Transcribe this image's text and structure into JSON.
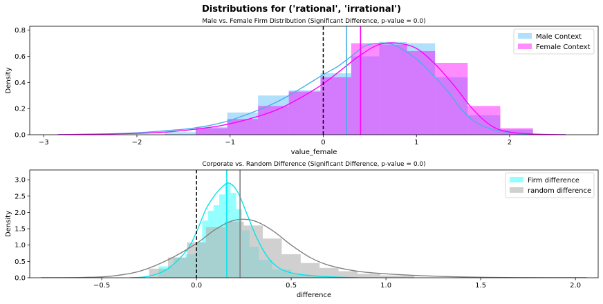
{
  "figure": {
    "suptitle": "Distributions for ('rational', 'irrational')"
  },
  "chart_data": [
    {
      "type": "histogram-kde",
      "title": "Male vs. Female Firm Distribution (Significant Difference, p-value = 0.0)",
      "xlabel": "value_female",
      "ylabel": "Density",
      "xlim": [
        -3.15,
        2.95
      ],
      "ylim": [
        0,
        0.83
      ],
      "xticks": [
        -3,
        -2,
        -1,
        0,
        1,
        2
      ],
      "yticks": [
        0.0,
        0.2,
        0.4,
        0.6,
        0.8
      ],
      "ytick_format": 1,
      "legend_position": "top-right",
      "reference_line_x": 0,
      "series": [
        {
          "name": "Male Context",
          "color": "#4aaee8",
          "fill_color": "#87cefa",
          "fill_opacity": 0.65,
          "bins": [
            {
              "x0": -1.7,
              "x1": -1.37,
              "height": 0.02
            },
            {
              "x0": -1.37,
              "x1": -1.03,
              "height": 0.06
            },
            {
              "x0": -1.03,
              "x1": -0.7,
              "height": 0.17
            },
            {
              "x0": -0.7,
              "x1": -0.37,
              "height": 0.3
            },
            {
              "x0": -0.37,
              "x1": -0.03,
              "height": 0.34
            },
            {
              "x0": -0.03,
              "x1": 0.3,
              "height": 0.47
            },
            {
              "x0": 0.3,
              "x1": 0.6,
              "height": 0.6
            },
            {
              "x0": 0.6,
              "x1": 0.9,
              "height": 0.71
            },
            {
              "x0": 0.9,
              "x1": 1.2,
              "height": 0.7
            },
            {
              "x0": 1.2,
              "x1": 1.55,
              "height": 0.44
            },
            {
              "x0": 1.55,
              "x1": 1.9,
              "height": 0.15
            },
            {
              "x0": 1.9,
              "x1": 2.25,
              "height": 0.04
            }
          ],
          "kde_x": [
            -2.85,
            -2.4,
            -2.0,
            -1.7,
            -1.4,
            -1.1,
            -0.8,
            -0.5,
            -0.25,
            0.0,
            0.15,
            0.3,
            0.45,
            0.6,
            0.75,
            0.9,
            1.05,
            1.2,
            1.35,
            1.5,
            1.7,
            2.0,
            2.3,
            2.6
          ],
          "kde_y": [
            0.0,
            0.005,
            0.015,
            0.03,
            0.05,
            0.09,
            0.16,
            0.25,
            0.35,
            0.46,
            0.52,
            0.6,
            0.68,
            0.7,
            0.69,
            0.63,
            0.55,
            0.44,
            0.32,
            0.18,
            0.07,
            0.015,
            0.003,
            0.0
          ],
          "mean_line_x": 0.25
        },
        {
          "name": "Female Context",
          "color": "#ff00ff",
          "fill_color": "#ff00ff",
          "fill_opacity": 0.45,
          "bins": [
            {
              "x0": -1.37,
              "x1": -1.03,
              "height": 0.05
            },
            {
              "x0": -1.03,
              "x1": -0.7,
              "height": 0.12
            },
            {
              "x0": -0.7,
              "x1": -0.37,
              "height": 0.22
            },
            {
              "x0": -0.37,
              "x1": -0.03,
              "height": 0.33
            },
            {
              "x0": -0.03,
              "x1": 0.3,
              "height": 0.44
            },
            {
              "x0": 0.3,
              "x1": 0.6,
              "height": 0.7
            },
            {
              "x0": 0.6,
              "x1": 0.9,
              "height": 0.69
            },
            {
              "x0": 0.9,
              "x1": 1.2,
              "height": 0.64
            },
            {
              "x0": 1.2,
              "x1": 1.55,
              "height": 0.55
            },
            {
              "x0": 1.55,
              "x1": 1.9,
              "height": 0.22
            },
            {
              "x0": 1.9,
              "x1": 2.25,
              "height": 0.05
            }
          ],
          "kde_x": [
            -2.85,
            -2.4,
            -2.0,
            -1.7,
            -1.4,
            -1.1,
            -0.8,
            -0.5,
            -0.25,
            0.0,
            0.2,
            0.4,
            0.6,
            0.8,
            1.0,
            1.2,
            1.4,
            1.6,
            1.8,
            2.0,
            2.3,
            2.6
          ],
          "kde_y": [
            0.0,
            0.005,
            0.01,
            0.02,
            0.04,
            0.07,
            0.12,
            0.19,
            0.28,
            0.39,
            0.5,
            0.61,
            0.69,
            0.7,
            0.66,
            0.54,
            0.38,
            0.2,
            0.07,
            0.02,
            0.004,
            0.0
          ],
          "mean_line_x": 0.4
        }
      ]
    },
    {
      "type": "histogram-kde",
      "title": "Corporate vs. Random Difference (Significant Difference, p-value = 0.0)",
      "xlabel": "difference",
      "ylabel": "Density",
      "xlim": [
        -0.88,
        2.12
      ],
      "ylim": [
        0,
        3.3
      ],
      "xticks": [
        -0.5,
        0.0,
        0.5,
        1.0,
        1.5,
        2.0
      ],
      "yticks": [
        0.0,
        0.5,
        1.0,
        1.5,
        2.0,
        2.5,
        3.0
      ],
      "ytick_format": 1,
      "legend_position": "top-right",
      "reference_line_x": 0,
      "series": [
        {
          "name": "Firm difference",
          "color": "#00e5ee",
          "fill_color": "#00ffff",
          "fill_opacity": 0.42,
          "bins": [
            {
              "x0": -0.2,
              "x1": -0.12,
              "height": 0.35
            },
            {
              "x0": -0.12,
              "x1": -0.06,
              "height": 0.62
            },
            {
              "x0": -0.06,
              "x1": 0.0,
              "height": 0.72
            },
            {
              "x0": 0.0,
              "x1": 0.03,
              "height": 1.1
            },
            {
              "x0": 0.03,
              "x1": 0.06,
              "height": 1.75
            },
            {
              "x0": 0.06,
              "x1": 0.09,
              "height": 2.05
            },
            {
              "x0": 0.09,
              "x1": 0.12,
              "height": 2.22
            },
            {
              "x0": 0.12,
              "x1": 0.15,
              "height": 2.55
            },
            {
              "x0": 0.15,
              "x1": 0.18,
              "height": 2.9
            },
            {
              "x0": 0.18,
              "x1": 0.21,
              "height": 2.6
            },
            {
              "x0": 0.21,
              "x1": 0.24,
              "height": 2.1
            },
            {
              "x0": 0.24,
              "x1": 0.28,
              "height": 1.45
            },
            {
              "x0": 0.28,
              "x1": 0.33,
              "height": 0.95
            },
            {
              "x0": 0.33,
              "x1": 0.4,
              "height": 0.55
            },
            {
              "x0": 0.4,
              "x1": 0.5,
              "height": 0.25
            },
            {
              "x0": 0.5,
              "x1": 0.6,
              "height": 0.1
            },
            {
              "x0": 0.6,
              "x1": 0.72,
              "height": 0.04
            }
          ],
          "kde_x": [
            -0.35,
            -0.25,
            -0.15,
            -0.05,
            0.0,
            0.05,
            0.1,
            0.15,
            0.18,
            0.22,
            0.27,
            0.32,
            0.38,
            0.45,
            0.55,
            0.7,
            0.85
          ],
          "kde_y": [
            0.0,
            0.05,
            0.28,
            0.85,
            1.4,
            2.1,
            2.55,
            2.85,
            2.88,
            2.6,
            1.9,
            1.2,
            0.6,
            0.25,
            0.1,
            0.03,
            0.0
          ],
          "mean_line_x": 0.16
        },
        {
          "name": "random difference",
          "color": "#808080",
          "fill_color": "#b3b3b3",
          "fill_opacity": 0.62,
          "bins": [
            {
              "x0": -0.25,
              "x1": -0.15,
              "height": 0.28
            },
            {
              "x0": -0.15,
              "x1": -0.05,
              "height": 0.62
            },
            {
              "x0": -0.05,
              "x1": 0.05,
              "height": 1.08
            },
            {
              "x0": 0.05,
              "x1": 0.15,
              "height": 1.55
            },
            {
              "x0": 0.15,
              "x1": 0.25,
              "height": 1.72
            },
            {
              "x0": 0.25,
              "x1": 0.35,
              "height": 1.6
            },
            {
              "x0": 0.35,
              "x1": 0.45,
              "height": 1.2
            },
            {
              "x0": 0.45,
              "x1": 0.55,
              "height": 0.72
            },
            {
              "x0": 0.55,
              "x1": 0.65,
              "height": 0.45
            },
            {
              "x0": 0.65,
              "x1": 0.75,
              "height": 0.3
            },
            {
              "x0": 0.75,
              "x1": 0.85,
              "height": 0.2
            },
            {
              "x0": 0.85,
              "x1": 0.97,
              "height": 0.12
            },
            {
              "x0": 0.97,
              "x1": 1.15,
              "height": 0.07
            }
          ],
          "kde_x": [
            -0.82,
            -0.6,
            -0.45,
            -0.3,
            -0.15,
            0.0,
            0.1,
            0.2,
            0.3,
            0.4,
            0.5,
            0.6,
            0.7,
            0.85,
            1.0,
            1.2,
            1.45,
            1.7,
            2.06
          ],
          "kde_y": [
            0.0,
            0.01,
            0.05,
            0.2,
            0.55,
            1.05,
            1.48,
            1.76,
            1.75,
            1.45,
            1.0,
            0.62,
            0.38,
            0.2,
            0.12,
            0.06,
            0.02,
            0.005,
            0.0
          ],
          "mean_line_x": 0.23
        }
      ]
    }
  ]
}
